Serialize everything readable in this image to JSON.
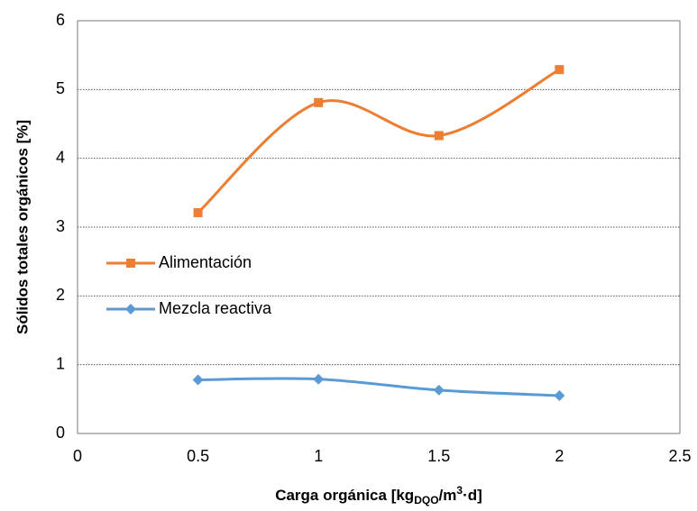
{
  "chart_data": {
    "type": "line",
    "x_label": [
      "Carga orgánica [kg",
      "DQO",
      "/m",
      "3",
      "·d]"
    ],
    "y_label": "Sólidos totales orgánicos [%]",
    "x": [
      0.5,
      1,
      1.5,
      2
    ],
    "series": [
      {
        "name": "Alimentación",
        "color": "#ED7D31",
        "marker": "square",
        "values": [
          3.21,
          4.81,
          4.33,
          5.29
        ]
      },
      {
        "name": "Mezcla reactiva",
        "color": "#5B9BD5",
        "marker": "diamond",
        "values": [
          0.78,
          0.79,
          0.63,
          0.55
        ]
      }
    ],
    "xlim": [
      0,
      2.5
    ],
    "xticks": [
      0,
      0.5,
      1,
      1.5,
      2,
      2.5
    ],
    "ylim": [
      0,
      6
    ],
    "yticks": [
      0,
      1,
      2,
      3,
      4,
      5,
      6
    ],
    "grid": true,
    "smooth": true,
    "legend": "left"
  }
}
